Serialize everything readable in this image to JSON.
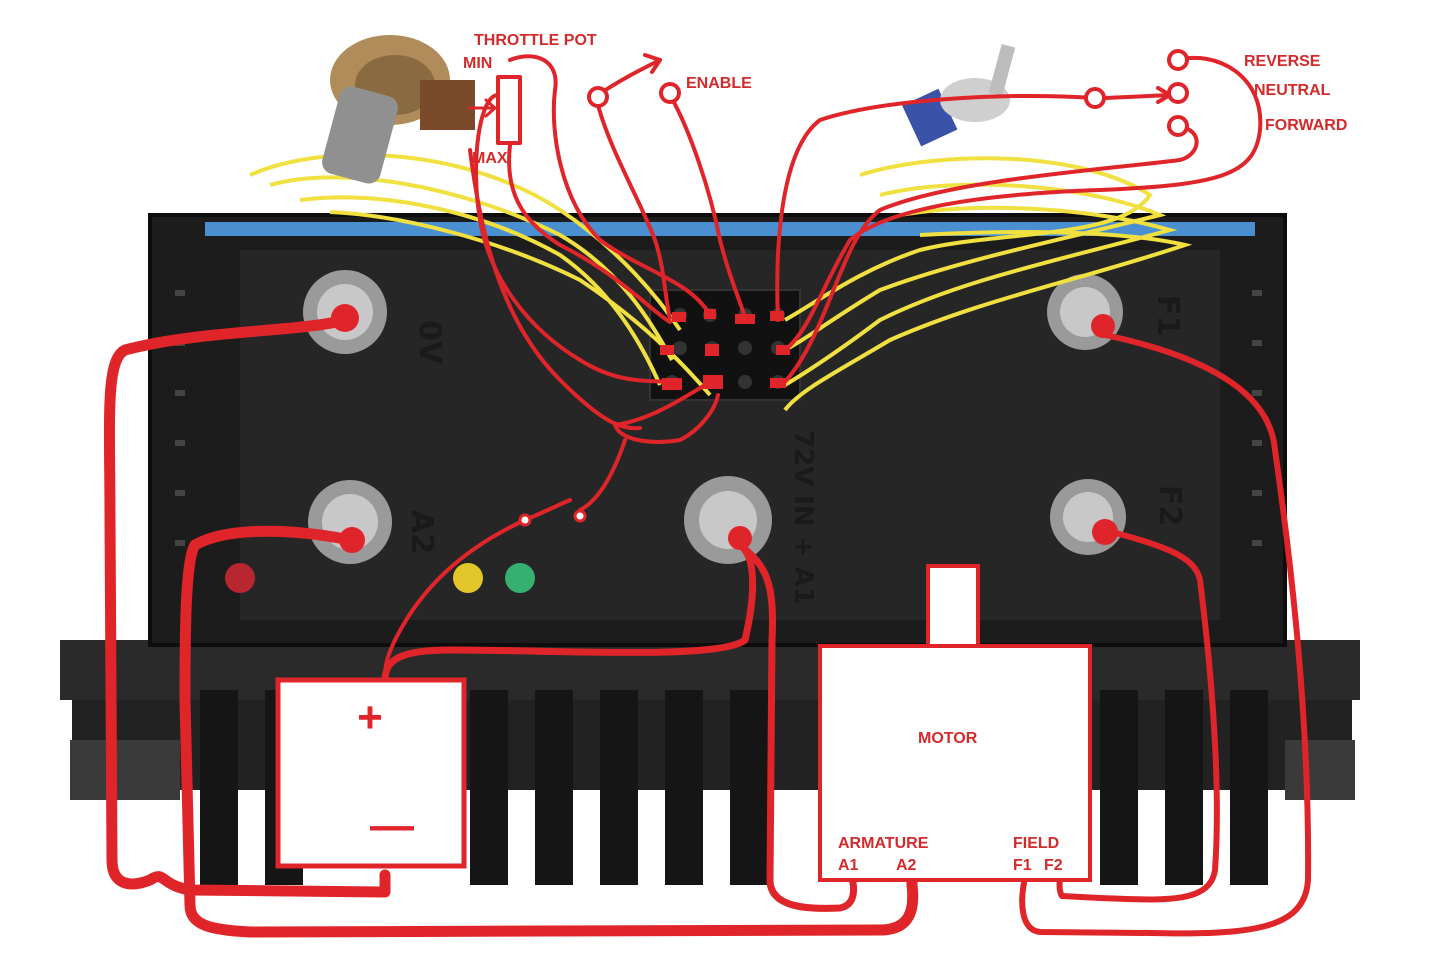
{
  "labels": {
    "throttle_pot": "THROTTLE POT",
    "min": "MIN",
    "max": "MAX",
    "enable": "ENABLE",
    "reverse": "REVERSE",
    "neutral": "NEUTRAL",
    "forward": "FORWARD",
    "motor": "MOTOR",
    "armature": "ARMATURE",
    "field": "FIELD",
    "a1": "A1",
    "a2": "A2",
    "f1": "F1",
    "f2": "F2",
    "battery_plus": "+",
    "battery_minus": "—"
  },
  "controller_markings": {
    "zero_v": "0V",
    "a2": "A2",
    "input": "72V IN + A1",
    "f1": "F1",
    "f2": "F2"
  },
  "colors": {
    "wire": "#e0252a",
    "signal_wire": "#f0e040",
    "heatsink": "#1e1e1e",
    "background": "#ffffff"
  }
}
